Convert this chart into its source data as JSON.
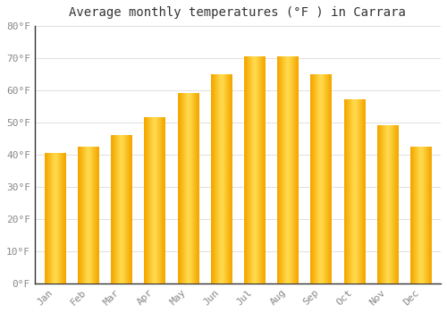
{
  "title": "Average monthly temperatures (°F ) in Carrara",
  "months": [
    "Jan",
    "Feb",
    "Mar",
    "Apr",
    "May",
    "Jun",
    "Jul",
    "Aug",
    "Sep",
    "Oct",
    "Nov",
    "Dec"
  ],
  "values": [
    40.5,
    42.5,
    46.0,
    51.5,
    59.0,
    65.0,
    70.5,
    70.5,
    65.0,
    57.0,
    49.0,
    42.5
  ],
  "bar_color_center": "#FFD84A",
  "bar_color_edge": "#F5A800",
  "background_color": "#ffffff",
  "ylim": [
    0,
    80
  ],
  "yticks": [
    0,
    10,
    20,
    30,
    40,
    50,
    60,
    70,
    80
  ],
  "grid_color": "#e0e0e0",
  "title_fontsize": 10,
  "tick_fontsize": 8,
  "tick_color": "#888888",
  "spine_color": "#333333",
  "font_family": "monospace"
}
